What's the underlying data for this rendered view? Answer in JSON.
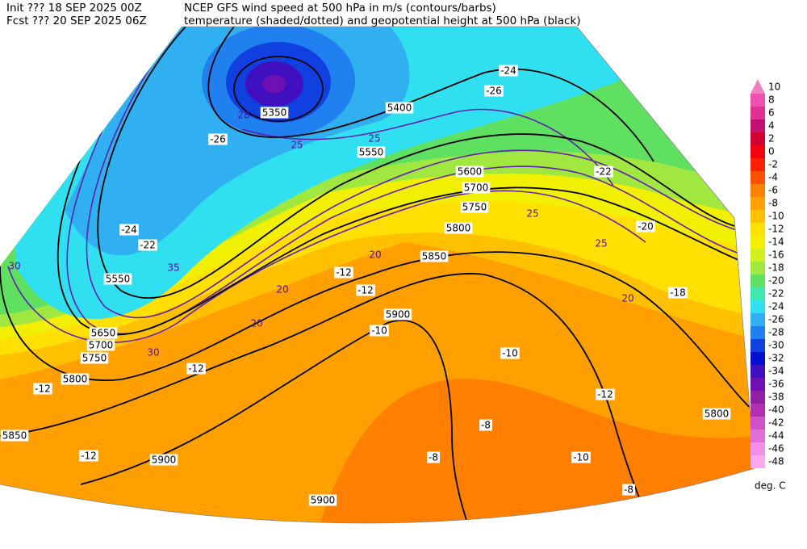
{
  "header": {
    "init": "Init  ??? 18 SEP 2025 00Z",
    "fcst": "Fcst ??? 20 SEP 2025 06Z",
    "title1": "NCEP GFS wind speed at 500 hPa in m/s (contours/barbs)",
    "title2": "temperature (shaded/dotted) and geopotential height at 500 hPa (black)"
  },
  "colorbar": {
    "levels": [
      10,
      8,
      6,
      4,
      2,
      0,
      -2,
      -4,
      -6,
      -8,
      -10,
      -12,
      -14,
      -16,
      -18,
      -20,
      -22,
      -24,
      -26,
      -28,
      -30,
      -32,
      -34,
      -36,
      -38,
      -40,
      -42,
      -44,
      -46,
      -48
    ],
    "colors": [
      "#f080c0",
      "#f050b0",
      "#e03090",
      "#c01070",
      "#d00030",
      "#f00010",
      "#ff2000",
      "#ff5000",
      "#ff8000",
      "#ffa000",
      "#ffc000",
      "#ffe000",
      "#f0f000",
      "#d0f020",
      "#a0e840",
      "#60e060",
      "#40e8b0",
      "#30e0f0",
      "#30b0f0",
      "#2080f0",
      "#1040e0",
      "#0010d0",
      "#4010c0",
      "#7010b0",
      "#9020a0",
      "#b030b0",
      "#d050c8",
      "#e070d8",
      "#f090e8",
      "#ffa8f0"
    ],
    "unit": "deg. C"
  },
  "map": {
    "labels": [
      "5350",
      "5400",
      "5550",
      "5550",
      "5600",
      "5700",
      "5750",
      "5800",
      "5850",
      "5900",
      "5650",
      "5700",
      "5750",
      "5800",
      "5850",
      "5900",
      "5900",
      "5800",
      "-12",
      "-12",
      "-10",
      "-10",
      "-12",
      "-8",
      "-8",
      "-8",
      "-10",
      "-12",
      "-12",
      "-12",
      "-18",
      "-20",
      "-22",
      "-22",
      "-24",
      "-26",
      "-24",
      "-26",
      "20",
      "20",
      "20",
      "25",
      "25",
      "28",
      "30",
      "35",
      "30",
      "25",
      "20",
      "25"
    ]
  }
}
